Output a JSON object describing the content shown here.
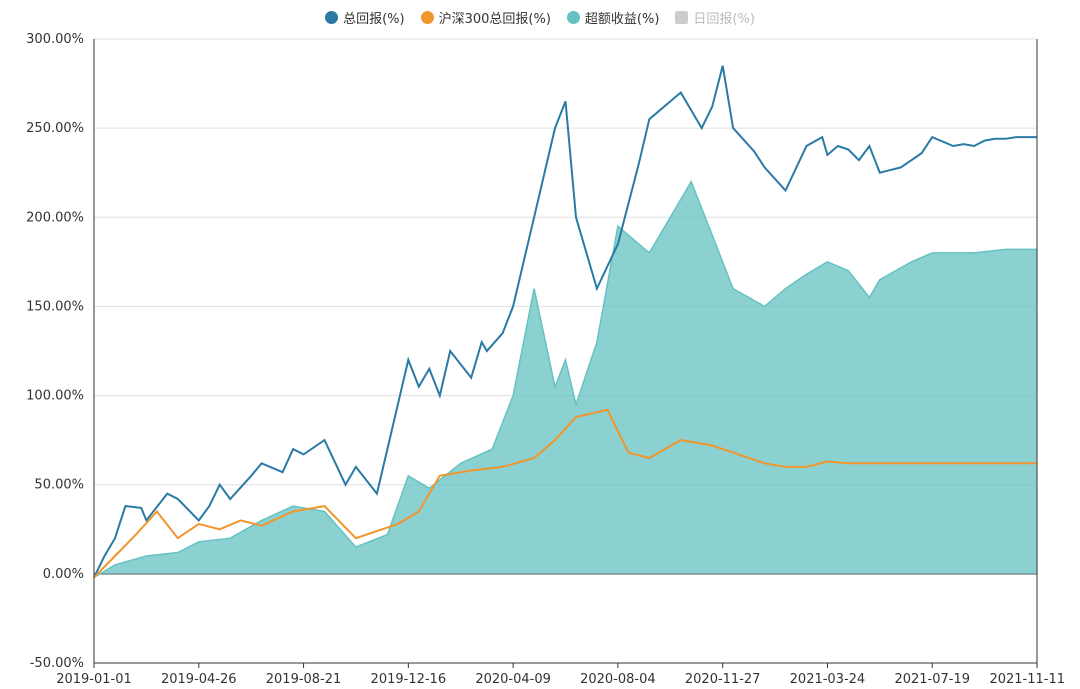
{
  "chart_data": {
    "type": "line",
    "title": "",
    "xlabel": "",
    "ylabel": "",
    "ylim": [
      -50,
      300
    ],
    "y_ticks": [
      "300.00%",
      "250.00%",
      "200.00%",
      "150.00%",
      "100.00%",
      "50.00%",
      "0.00%",
      "-50.00%"
    ],
    "y_tick_values": [
      300,
      250,
      200,
      150,
      100,
      50,
      0,
      -50
    ],
    "x_ticks": [
      "2019-01-01",
      "2019-04-26",
      "2019-08-21",
      "2019-12-16",
      "2020-04-09",
      "2020-08-04",
      "2020-11-27",
      "2021-03-24",
      "2021-07-19",
      "2021-11-11"
    ],
    "x_range": [
      0,
      9
    ],
    "legend": [
      {
        "name": "总回报(%)",
        "color": "#2a7aa5",
        "active": true,
        "shape": "circle"
      },
      {
        "name": "沪深300总回报(%)",
        "color": "#f0962d",
        "active": true,
        "shape": "circle"
      },
      {
        "name": "超额收益(%)",
        "color": "#66c2c2",
        "active": true,
        "shape": "circle"
      },
      {
        "name": "日回报(%)",
        "color": "#cccccc",
        "active": false,
        "shape": "square"
      }
    ],
    "series": [
      {
        "name": "总回报(%)",
        "style": "line",
        "color": "#2a7aa5",
        "x": [
          0,
          0.1,
          0.2,
          0.3,
          0.45,
          0.5,
          0.7,
          0.8,
          1.0,
          1.1,
          1.2,
          1.3,
          1.5,
          1.6,
          1.8,
          1.9,
          2.0,
          2.2,
          2.4,
          2.5,
          2.7,
          2.8,
          3.0,
          3.1,
          3.2,
          3.3,
          3.4,
          3.6,
          3.7,
          3.75,
          3.9,
          4.0,
          4.2,
          4.4,
          4.5,
          4.6,
          4.8,
          5.0,
          5.2,
          5.3,
          5.5,
          5.6,
          5.8,
          5.9,
          6.0,
          6.1,
          6.3,
          6.4,
          6.6,
          6.8,
          6.95,
          7.0,
          7.1,
          7.2,
          7.3,
          7.4,
          7.5,
          7.7,
          7.9,
          8.0,
          8.2,
          8.3,
          8.4,
          8.5,
          8.6,
          8.7,
          8.8,
          8.9,
          9.0
        ],
        "values": [
          -2,
          10,
          20,
          38,
          37,
          30,
          45,
          42,
          30,
          38,
          50,
          42,
          55,
          62,
          57,
          70,
          67,
          75,
          50,
          60,
          45,
          70,
          120,
          105,
          115,
          100,
          125,
          110,
          130,
          125,
          135,
          150,
          200,
          250,
          265,
          200,
          160,
          185,
          230,
          255,
          265,
          270,
          250,
          262,
          285,
          250,
          237,
          228,
          215,
          240,
          245,
          235,
          240,
          238,
          232,
          240,
          225,
          228,
          236,
          245,
          240,
          241,
          240,
          243,
          244,
          244,
          245,
          245,
          245
        ],
        "note": "approximate daily total return trace"
      },
      {
        "name": "沪深300总回报(%)",
        "style": "line",
        "color": "#f0962d",
        "x": [
          0,
          0.2,
          0.4,
          0.6,
          0.8,
          1.0,
          1.2,
          1.4,
          1.6,
          1.9,
          2.2,
          2.5,
          2.9,
          3.1,
          3.3,
          3.6,
          3.9,
          4.2,
          4.4,
          4.6,
          4.9,
          5.1,
          5.3,
          5.6,
          5.9,
          6.1,
          6.4,
          6.6,
          6.8,
          7.0,
          7.2,
          7.4,
          7.6,
          7.8,
          8.0,
          8.3,
          8.6,
          9.0
        ],
        "values": [
          -2,
          10,
          22,
          35,
          20,
          28,
          25,
          30,
          27,
          35,
          38,
          20,
          28,
          35,
          55,
          58,
          60,
          65,
          75,
          88,
          92,
          68,
          65,
          75,
          72,
          68,
          62,
          60,
          60,
          63,
          62,
          62,
          62,
          62,
          62,
          62,
          62,
          62
        ],
        "note": "approximate CSI 300 total return trace"
      },
      {
        "name": "超额收益(%)",
        "style": "area",
        "color": "#66c2c2",
        "x": [
          0,
          0.2,
          0.5,
          0.8,
          1.0,
          1.3,
          1.6,
          1.9,
          2.2,
          2.5,
          2.8,
          3.0,
          3.2,
          3.5,
          3.8,
          4.0,
          4.2,
          4.4,
          4.5,
          4.6,
          4.8,
          5.0,
          5.3,
          5.5,
          5.7,
          5.9,
          6.0,
          6.1,
          6.4,
          6.6,
          6.8,
          7.0,
          7.2,
          7.4,
          7.5,
          7.8,
          8.0,
          8.4,
          8.7,
          9.0
        ],
        "values": [
          -2,
          5,
          10,
          12,
          18,
          20,
          30,
          38,
          35,
          15,
          22,
          55,
          48,
          62,
          70,
          100,
          160,
          105,
          120,
          95,
          130,
          195,
          180,
          200,
          220,
          190,
          175,
          160,
          150,
          160,
          168,
          175,
          170,
          155,
          165,
          175,
          180,
          180,
          182,
          182
        ],
        "note": "approximate excess return (filled area)"
      }
    ]
  }
}
